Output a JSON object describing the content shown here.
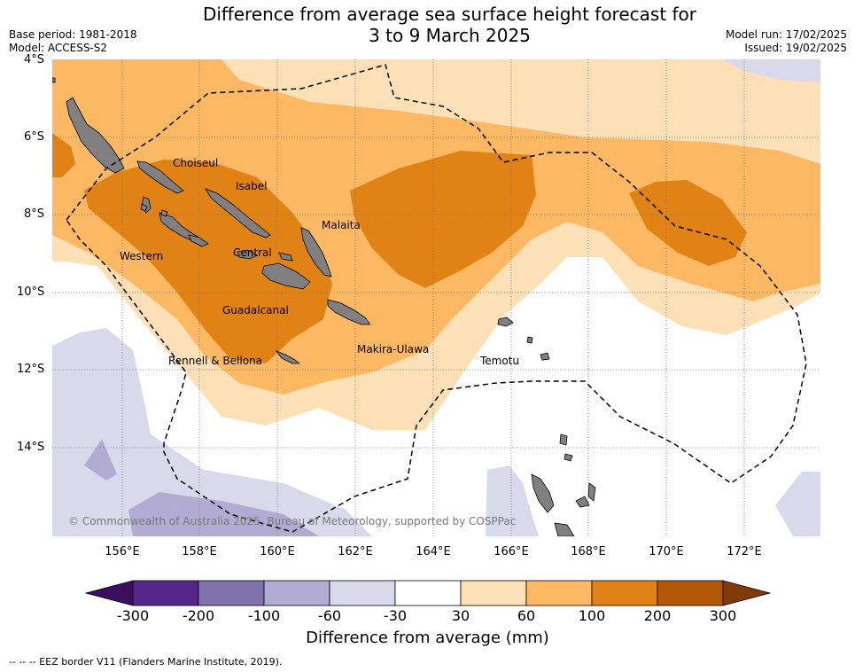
{
  "title": {
    "line1": "Difference from average sea surface height forecast for",
    "line2": "3 to 9 March 2025"
  },
  "meta": {
    "base_period": "Base period: 1981-2018",
    "model": "Model: ACCESS-S2",
    "model_run": "Model run: 17/02/2025",
    "issued": "Issued: 19/02/2025"
  },
  "axes": {
    "lat_labels": [
      "4°S",
      "6°S",
      "8°S",
      "10°S",
      "12°S",
      "14°S"
    ],
    "lon_labels": [
      "156°E",
      "158°E",
      "160°E",
      "162°E",
      "164°E",
      "166°E",
      "168°E",
      "170°E",
      "172°E"
    ]
  },
  "places": {
    "choiseul": "Choiseul",
    "isabel": "Isabel",
    "malaita": "Malaita",
    "western": "Western",
    "central": "Central",
    "guadalcanal": "Guadalcanal",
    "makira": "Makira-Ulawa",
    "rennell": "Rennell & Bellona",
    "temotu": "Temotu"
  },
  "copyright": "© Commonwealth of Australia 2025, Bureau of Meteorology, supported by COSPPac",
  "colorbar": {
    "title": "Difference from average (mm)",
    "ticks": [
      "-300",
      "-200",
      "-100",
      "-60",
      "-30",
      "30",
      "60",
      "100",
      "200",
      "300"
    ],
    "colors": {
      "below": "#3b0f5e",
      "c1": "#542788",
      "c2": "#8073ac",
      "c3": "#b2abd2",
      "c4": "#d8daeb",
      "c5": "#ffffff",
      "c6": "#fee0b6",
      "c7": "#fdb863",
      "c8": "#e08214",
      "c9": "#b35806",
      "above": "#7f3b08"
    }
  },
  "footnote": "--  --  -- EEZ border V11 (Flanders Marine Institute, 2019)."
}
